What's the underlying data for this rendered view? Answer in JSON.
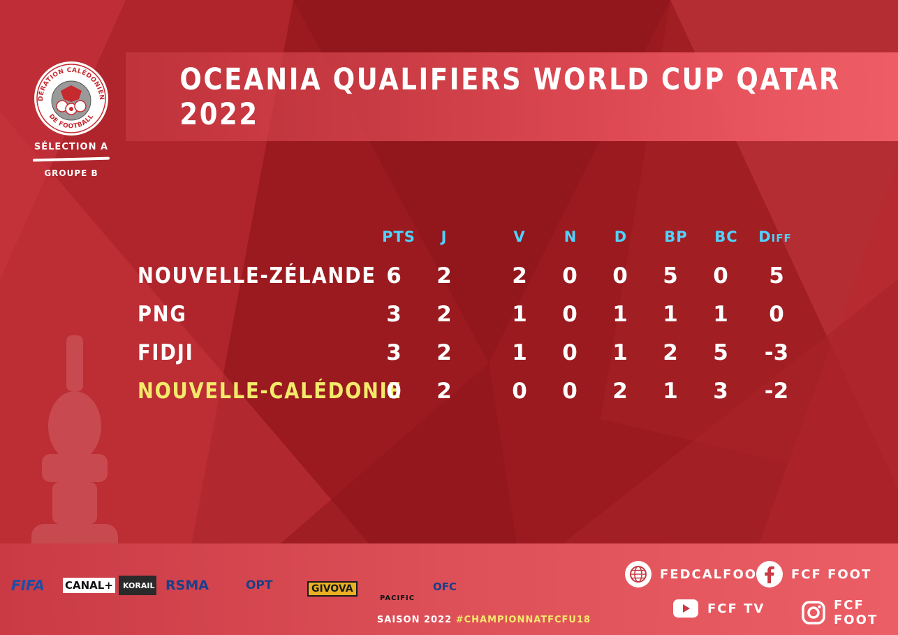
{
  "title": "OCEANIA QUALIFIERS WORLD CUP QATAR 2022",
  "logo": {
    "top_text": "FÉDÉRATION CALÉDONIENNE",
    "bottom_text": "DE FOOTBALL",
    "selection": "SÉLECTION A",
    "group": "GROUPE B"
  },
  "table": {
    "columns": [
      "PTS",
      "J",
      "V",
      "N",
      "D",
      "BP",
      "BC"
    ],
    "diff_header": {
      "big": "D",
      "small": "IFF"
    },
    "rows": [
      {
        "team": "NOUVELLE-ZÉLANDE",
        "pts": "6",
        "j": "2",
        "v": "2",
        "n": "0",
        "d": "0",
        "bp": "5",
        "bc": "0",
        "diff": "5",
        "highlight": false
      },
      {
        "team": "PNG",
        "pts": "3",
        "j": "2",
        "v": "1",
        "n": "0",
        "d": "1",
        "bp": "1",
        "bc": "1",
        "diff": "0",
        "highlight": false
      },
      {
        "team": "FIDJI",
        "pts": "3",
        "j": "2",
        "v": "1",
        "n": "0",
        "d": "1",
        "bp": "2",
        "bc": "5",
        "diff": "-3",
        "highlight": false
      },
      {
        "team": "NOUVELLE-CALÉDONIE",
        "pts": "0",
        "j": "2",
        "v": "0",
        "n": "0",
        "d": "2",
        "bp": "1",
        "bc": "3",
        "diff": "-2",
        "highlight": true
      }
    ]
  },
  "sponsors": [
    "FIFA",
    "CANAL+",
    "KORAIL",
    "RSMA",
    "OPT",
    "GIVOVA",
    "PACIFIC",
    "OFC"
  ],
  "footer": {
    "saison": "SAISON 2022",
    "hashtag": "#CHAMPIONNATFCFU18"
  },
  "social": {
    "web": {
      "icon": "globe-icon",
      "label": "FEDCALFOOT"
    },
    "facebook": {
      "icon": "facebook-icon",
      "label": "FCF FOOT"
    },
    "youtube": {
      "icon": "youtube-icon",
      "label": "FCF TV"
    },
    "instagram": {
      "icon": "instagram-icon",
      "label": "FCF FOOT"
    }
  },
  "colors": {
    "background": "#9a1a1f",
    "header": "#4fd3ff",
    "highlight": "#f2ea6a"
  }
}
